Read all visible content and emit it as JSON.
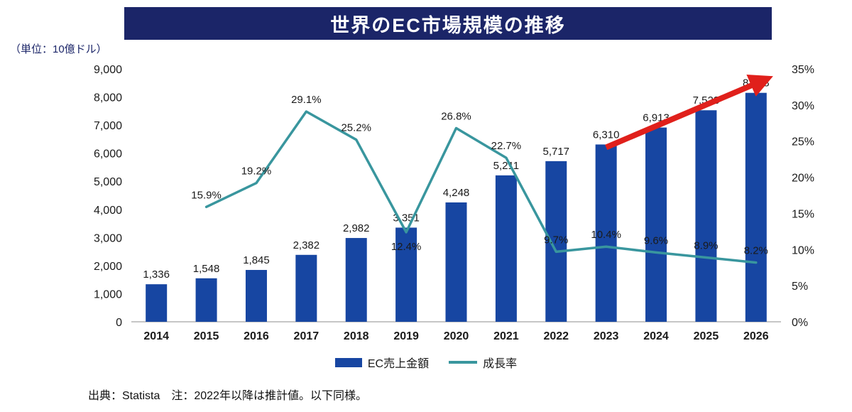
{
  "title": "世界のEC市場規模の推移",
  "unit_label": "（単位：10億ドル）",
  "legend": {
    "bar_label": "EC売上金額",
    "line_label": "成長率"
  },
  "footer_note": "出典：Statista　注：2022年以降は推計値。以下同様。",
  "colors": {
    "title_bg": "#1b2568",
    "title_text": "#ffffff",
    "bar": "#1746a2",
    "line": "#39969e",
    "arrow": "#e0201b",
    "axis_text": "#1a1a1a",
    "baseline": "#b3b3b3"
  },
  "chart_data": {
    "type": "bar+line",
    "title": "世界のEC市場規模の推移",
    "categories": [
      "2014",
      "2015",
      "2016",
      "2017",
      "2018",
      "2019",
      "2020",
      "2021",
      "2022",
      "2023",
      "2024",
      "2025",
      "2026"
    ],
    "series": [
      {
        "name": "EC売上金額",
        "type": "bar",
        "axis": "left",
        "values": [
          1336,
          1548,
          1845,
          2382,
          2982,
          3351,
          4248,
          5211,
          5717,
          6310,
          6913,
          7528,
          8148
        ]
      },
      {
        "name": "成長率",
        "type": "line",
        "axis": "right",
        "values": [
          null,
          15.9,
          19.2,
          29.1,
          25.2,
          12.4,
          26.8,
          22.7,
          9.7,
          10.4,
          9.6,
          8.9,
          8.2
        ]
      }
    ],
    "left_axis": {
      "min": 0,
      "max": 9000,
      "step": 1000
    },
    "right_axis": {
      "min": 0,
      "max": 35,
      "step": 5,
      "suffix": "%"
    },
    "grid": "off",
    "legend_position": "bottom",
    "percent_label_below_indices": [
      5
    ],
    "annotation": {
      "type": "trend-arrow",
      "from_category": "2023",
      "to_category": "2026"
    }
  }
}
